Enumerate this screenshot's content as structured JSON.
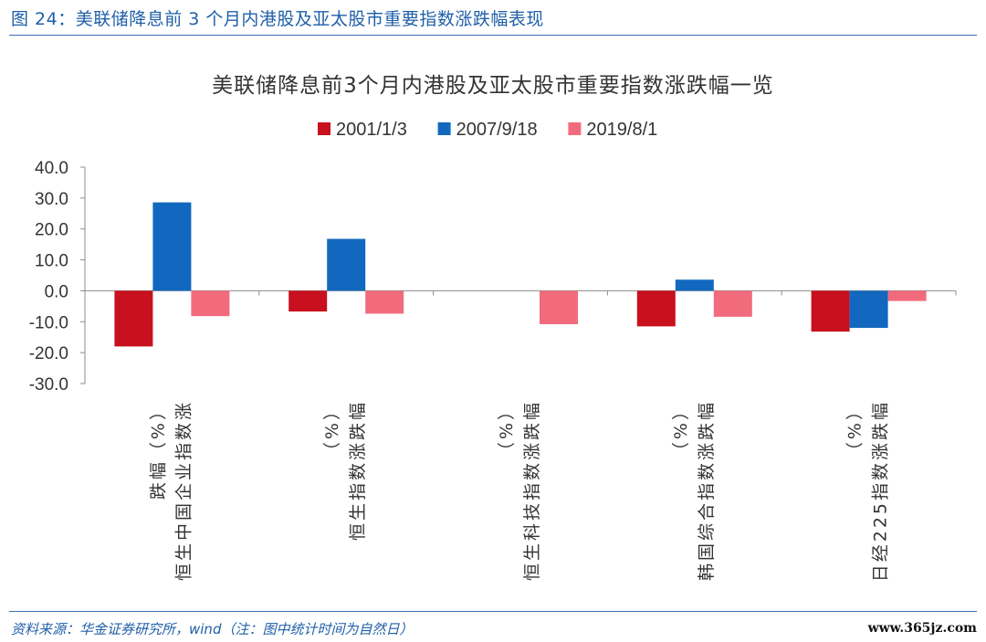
{
  "figure": {
    "title": "图 24：美联储降息前 3 个月内港股及亚太股市重要指数涨跌幅表现",
    "source": "资料来源：华金证券研究所，wind（注：图中统计时间为自然日）",
    "watermark": "www.365jz.com"
  },
  "chart_data": {
    "type": "bar",
    "title": "美联储降息前3个月内港股及亚太股市重要指数涨跌幅一览",
    "xlabel": "",
    "ylabel": "",
    "ylim": [
      -30,
      40
    ],
    "yticks": [
      40,
      30,
      20,
      10,
      0,
      -10,
      -20,
      -30
    ],
    "ytick_labels": [
      "40.0",
      "30.0",
      "20.0",
      "10.0",
      "0.0",
      "-10.0",
      "-20.0",
      "-30.0"
    ],
    "grid": false,
    "legend_position": "top-center",
    "categories": [
      "恒生中国企业指数涨跌幅（%）",
      "恒生指数涨跌幅（%）",
      "恒生科技指数涨跌幅（%）",
      "韩国综合指数涨跌幅（%）",
      "日经225指数涨跌幅（%）"
    ],
    "category_lines": [
      [
        "恒生中国企业指数涨",
        "跌幅（%）"
      ],
      [
        "恒生指数涨跌幅",
        "（%）"
      ],
      [
        "恒生科技指数涨跌幅",
        "（%）"
      ],
      [
        "韩国综合指数涨跌幅",
        "（%）"
      ],
      [
        "日经225指数涨跌幅",
        "（%）"
      ]
    ],
    "series": [
      {
        "name": "2001/1/3",
        "color": "#c8101e",
        "values": [
          -18.0,
          -6.7,
          null,
          -11.5,
          -13.2
        ]
      },
      {
        "name": "2007/9/18",
        "color": "#1268be",
        "values": [
          28.6,
          16.8,
          null,
          3.6,
          -12.0
        ]
      },
      {
        "name": "2019/8/1",
        "color": "#f26b7d",
        "values": [
          -8.2,
          -7.4,
          -10.8,
          -8.4,
          -3.3
        ]
      }
    ]
  }
}
